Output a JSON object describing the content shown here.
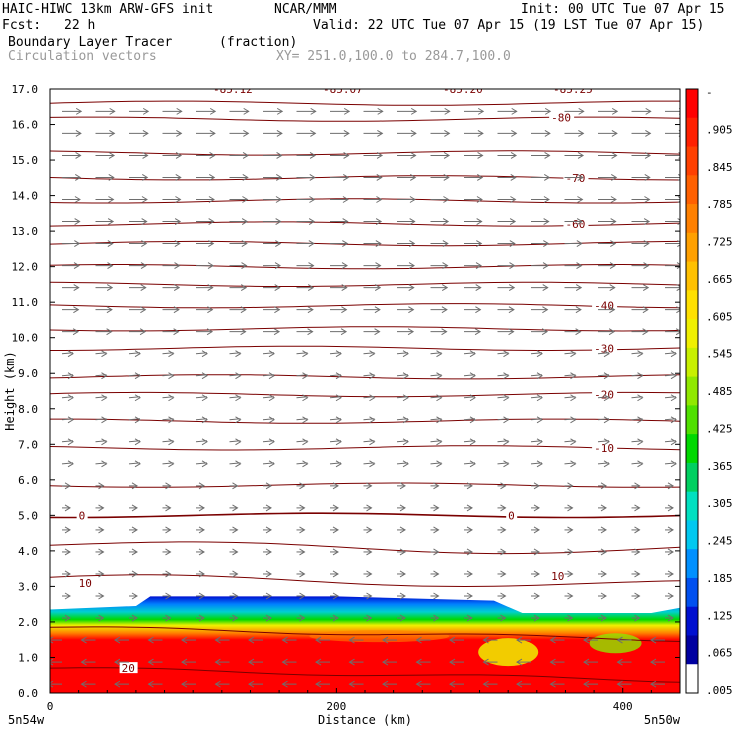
{
  "header": {
    "model": "HAIC-HIWC 13km ARW-GFS init",
    "org": "NCAR/MMM",
    "init": "Init: 00 UTC Tue 07 Apr 15",
    "fcst_label": "Fcst:",
    "fcst_value": "22 h",
    "valid": "Valid: 22 UTC Tue 07 Apr 15 (19 LST Tue 07 Apr 15)",
    "field_name": "Boundary Layer Tracer",
    "field_units": "(fraction)",
    "vector_label": "Circulation vectors",
    "xy_range": "XY= 251.0,100.0 to 284.7,100.0"
  },
  "chart_data": {
    "type": "heatmap",
    "xlabel": "Distance (km)",
    "ylabel": "Height (km)",
    "xlim": [
      0,
      440
    ],
    "ylim": [
      0,
      17
    ],
    "x_ticks": [
      "0",
      "200",
      "400"
    ],
    "x_tick_values": [
      0,
      200,
      400
    ],
    "x_end_labels": [
      "5n54w",
      "5n50w"
    ],
    "y_ticks": [
      "0.0",
      "1.0",
      "2.0",
      "3.0",
      "4.0",
      "5.0",
      "6.0",
      "7.0",
      "8.0",
      "9.0",
      "10.0",
      "11.0",
      "12.0",
      "13.0",
      "14.0",
      "15.0",
      "16.0",
      "17.0"
    ],
    "colorbar": {
      "labels": [
        "-",
        ".905",
        ".845",
        ".785",
        ".725",
        ".665",
        ".605",
        ".545",
        ".485",
        ".425",
        ".365",
        ".305",
        ".245",
        ".185",
        ".125",
        ".065",
        ".005"
      ],
      "colors": [
        "#ff0000",
        "#ff2000",
        "#ff4000",
        "#ff6000",
        "#ff8000",
        "#ffa000",
        "#ffc000",
        "#ffe000",
        "#f0f000",
        "#c8f000",
        "#90e800",
        "#50e000",
        "#00d800",
        "#00d060",
        "#00e0c0",
        "#00c8f0",
        "#0090ff",
        "#0050f0",
        "#0010d0",
        "#0000a0"
      ],
      "last_color": "#ffffff"
    },
    "temperature_contours": [
      {
        "label": "-80",
        "y": 16.2,
        "label_x": 350
      },
      {
        "label": "-70",
        "y": 14.5,
        "label_x": 360
      },
      {
        "label": "-60",
        "y": 13.2,
        "label_x": 360
      },
      {
        "label": "-40",
        "y": 10.9,
        "label_x": 380
      },
      {
        "label": "-30",
        "y": 9.7,
        "label_x": 380
      },
      {
        "label": "-20",
        "y": 8.4,
        "label_x": 380
      },
      {
        "label": "-10",
        "y": 6.9,
        "label_x": 380
      },
      {
        "label": "0",
        "y": 5.0,
        "label_x": 20
      },
      {
        "label": "0",
        "y": 5.0,
        "label_x": 320
      },
      {
        "label": "10",
        "y": 3.1,
        "label_x": 20
      },
      {
        "label": "10",
        "y": 3.3,
        "label_x": 350
      },
      {
        "label": "20",
        "y": 0.7,
        "label_x": 50
      }
    ],
    "top_labels": [
      "-85.12",
      "-85.07",
      "-85.20",
      "-85.25"
    ],
    "tracer_top_km": [
      [
        0,
        2.35
      ],
      [
        60,
        2.45
      ],
      [
        70,
        2.72
      ],
      [
        200,
        2.72
      ],
      [
        310,
        2.6
      ],
      [
        330,
        2.25
      ],
      [
        420,
        2.25
      ],
      [
        440,
        2.4
      ]
    ]
  }
}
